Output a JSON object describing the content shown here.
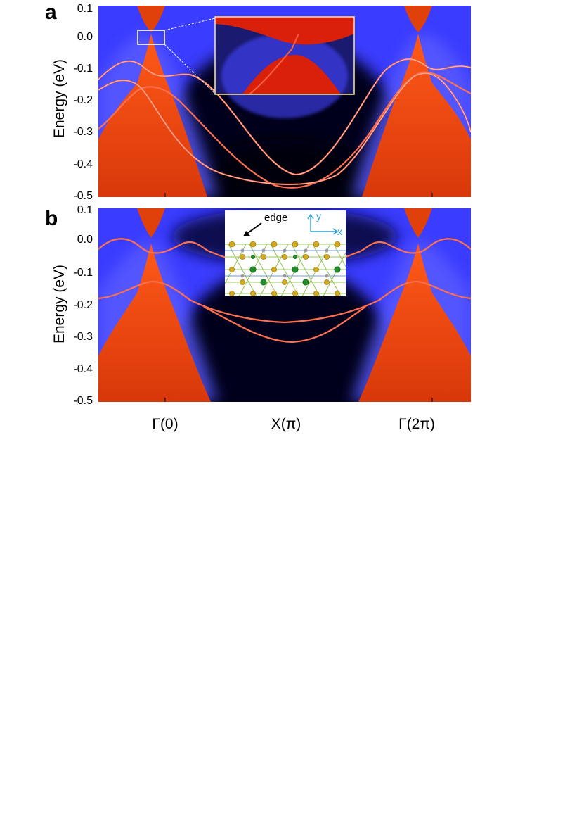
{
  "figure": {
    "panels": [
      {
        "letter": "a",
        "ylabel": "Energy (eV)",
        "yticks": [
          "0.1",
          "0.0",
          "-0.1",
          "-0.2",
          "-0.3",
          "-0.4",
          "-0.5"
        ],
        "ylim": [
          -0.5,
          0.1
        ]
      },
      {
        "letter": "b",
        "ylabel": "Energy (eV)",
        "yticks": [
          "0.1",
          "0.0",
          "-0.1",
          "-0.2",
          "-0.3",
          "-0.4",
          "-0.5"
        ],
        "ylim": [
          -0.5,
          0.1
        ],
        "inset": {
          "edge_label": "edge",
          "axis_y": "y",
          "axis_x": "x"
        }
      }
    ],
    "xticks": [
      "Γ(0)",
      "X(π)",
      "Γ(2π)"
    ]
  },
  "colors": {
    "background_dark": "#05021a",
    "blue_glow": "#3a3cff",
    "bulk_red": "#e0400a",
    "edge_state": "#ff7050",
    "atom_gold": "#d4a91c",
    "atom_green": "#1f8f2a"
  }
}
